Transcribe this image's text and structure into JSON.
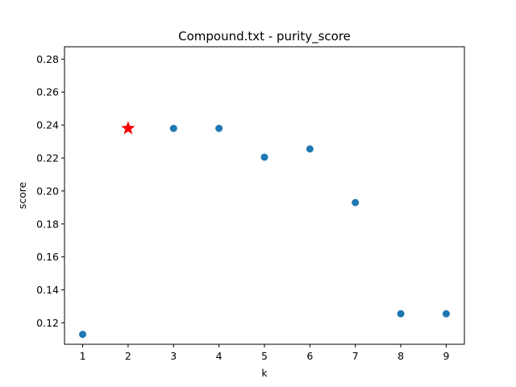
{
  "chart_data": {
    "type": "scatter",
    "title": "Compound.txt - purity_score",
    "xlabel": "k",
    "ylabel": "score",
    "x": [
      1,
      2,
      3,
      4,
      5,
      6,
      7,
      8,
      9
    ],
    "y": [
      0.113,
      0.238,
      0.238,
      0.238,
      0.2205,
      0.2255,
      0.193,
      0.1255,
      0.1255
    ],
    "highlight": {
      "x": 2,
      "y": 0.238,
      "marker": "star",
      "color": "#ff0000"
    },
    "xlim": [
      0.6,
      9.4
    ],
    "ylim": [
      0.107,
      0.2875
    ],
    "xticks": [
      1,
      2,
      3,
      4,
      5,
      6,
      7,
      8,
      9
    ],
    "yticks": [
      0.12,
      0.14,
      0.16,
      0.18,
      0.2,
      0.22,
      0.24,
      0.26,
      0.28
    ],
    "ytick_labels": [
      "0.12",
      "0.14",
      "0.16",
      "0.18",
      "0.20",
      "0.22",
      "0.24",
      "0.26",
      "0.28"
    ],
    "point_color": "#1f77b4",
    "grid": false,
    "legend": null
  }
}
